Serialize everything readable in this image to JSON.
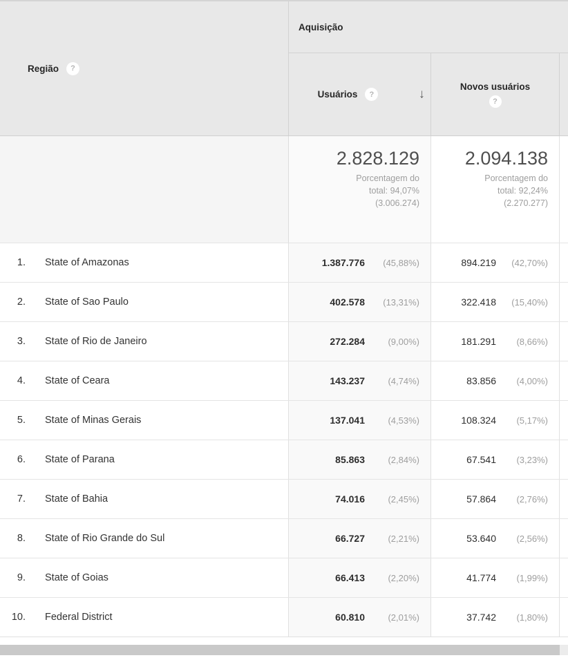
{
  "header": {
    "region_label": "Região",
    "acquisition_label": "Aquisição",
    "users_label": "Usuários",
    "new_users_label": "Novos usuários",
    "help_glyph": "?",
    "sort_arrow": "↓"
  },
  "summary": {
    "users_total": "2.828.129",
    "users_subtext": "Porcentagem do total: 94,07% (3.006.274)",
    "new_users_total": "2.094.138",
    "new_users_subtext": "Porcentagem do total: 92,24% (2.270.277)"
  },
  "rows": [
    {
      "rank": "1.",
      "region": "State of Amazonas",
      "users": "1.387.776",
      "users_pct": "(45,88%)",
      "new_users": "894.219",
      "new_users_pct": "(42,70%)"
    },
    {
      "rank": "2.",
      "region": "State of Sao Paulo",
      "users": "402.578",
      "users_pct": "(13,31%)",
      "new_users": "322.418",
      "new_users_pct": "(15,40%)"
    },
    {
      "rank": "3.",
      "region": "State of Rio de Janeiro",
      "users": "272.284",
      "users_pct": "(9,00%)",
      "new_users": "181.291",
      "new_users_pct": "(8,66%)"
    },
    {
      "rank": "4.",
      "region": "State of Ceara",
      "users": "143.237",
      "users_pct": "(4,74%)",
      "new_users": "83.856",
      "new_users_pct": "(4,00%)"
    },
    {
      "rank": "5.",
      "region": "State of Minas Gerais",
      "users": "137.041",
      "users_pct": "(4,53%)",
      "new_users": "108.324",
      "new_users_pct": "(5,17%)"
    },
    {
      "rank": "6.",
      "region": "State of Parana",
      "users": "85.863",
      "users_pct": "(2,84%)",
      "new_users": "67.541",
      "new_users_pct": "(3,23%)"
    },
    {
      "rank": "7.",
      "region": "State of Bahia",
      "users": "74.016",
      "users_pct": "(2,45%)",
      "new_users": "57.864",
      "new_users_pct": "(2,76%)"
    },
    {
      "rank": "8.",
      "region": "State of Rio Grande do Sul",
      "users": "66.727",
      "users_pct": "(2,21%)",
      "new_users": "53.640",
      "new_users_pct": "(2,56%)"
    },
    {
      "rank": "9.",
      "region": "State of Goias",
      "users": "66.413",
      "users_pct": "(2,20%)",
      "new_users": "41.774",
      "new_users_pct": "(1,99%)"
    },
    {
      "rank": "10.",
      "region": "Federal District",
      "users": "60.810",
      "users_pct": "(2,01%)",
      "new_users": "37.742",
      "new_users_pct": "(1,80%)"
    }
  ],
  "colors": {
    "header_bg": "#e8e8e8",
    "sorted_column_bg": "#f9f9f9",
    "summary_region_bg": "#f5f5f5",
    "border_dark": "#d2d2d2",
    "border_light": "#e2e2e2",
    "scrollbar_thumb": "#c9c9c9",
    "scrollbar_track": "#ececec"
  }
}
